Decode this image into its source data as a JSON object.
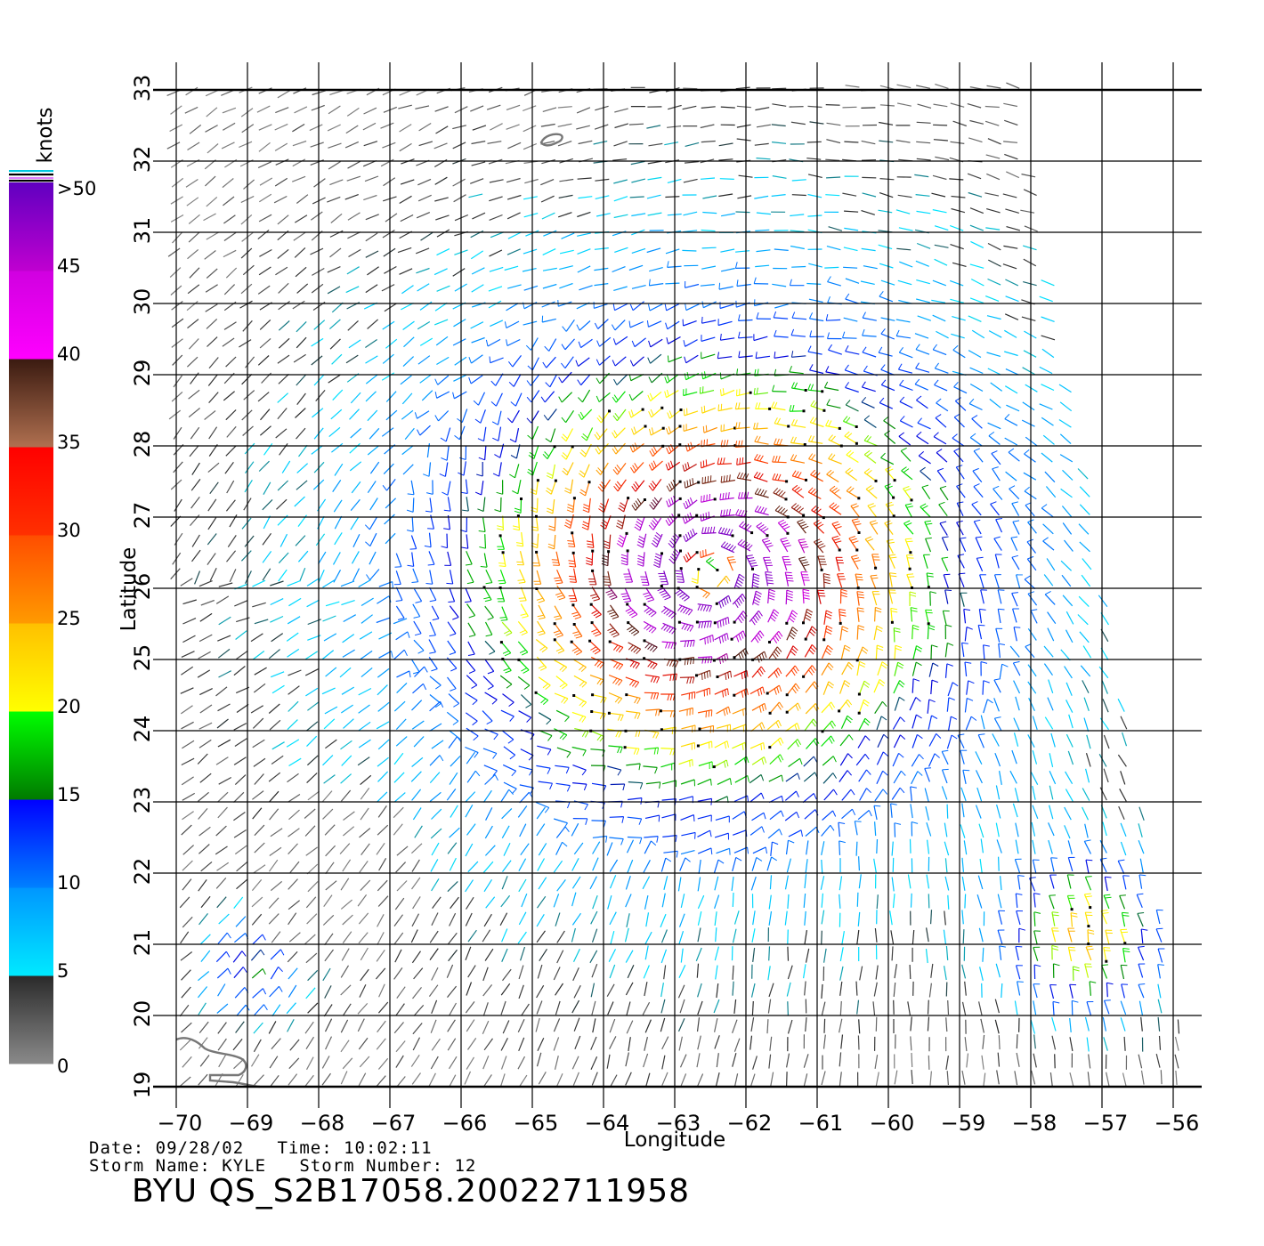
{
  "chart_data": {
    "type": "wind-barb-map",
    "xlabel": "Longitude",
    "ylabel": "Latitude",
    "xlim": [
      -70,
      -55.5
    ],
    "ylim": [
      19,
      33
    ],
    "x_ticks": [
      "−70",
      "−69",
      "−68",
      "−67",
      "−66",
      "−65",
      "−64",
      "−63",
      "−62",
      "−61",
      "−60",
      "−59",
      "−58",
      "−57",
      "−56"
    ],
    "y_ticks": [
      "19",
      "20",
      "21",
      "22",
      "23",
      "24",
      "25",
      "26",
      "27",
      "28",
      "29",
      "30",
      "31",
      "32",
      "33"
    ],
    "grid": true,
    "storm_center": {
      "lon": -62.5,
      "lat": 26.2
    },
    "colorbar": {
      "title": "knots",
      "labels": [
        "0",
        "5",
        "10",
        "15",
        "20",
        "25",
        "30",
        "35",
        "40",
        "45",
        ">50"
      ],
      "range": [
        0,
        55
      ],
      "colors": [
        {
          "from": 0,
          "to": 5,
          "bottom": "#8a8a8a",
          "top": "#2a2a2a"
        },
        {
          "from": 5,
          "to": 10,
          "bottom": "#00eaff",
          "top": "#0096ff"
        },
        {
          "from": 10,
          "to": 15,
          "bottom": "#0080ff",
          "top": "#0000ff"
        },
        {
          "from": 15,
          "to": 20,
          "bottom": "#007a00",
          "top": "#00ff00"
        },
        {
          "from": 20,
          "to": 25,
          "bottom": "#ffff00",
          "top": "#ffc000"
        },
        {
          "from": 25,
          "to": 30,
          "bottom": "#ff9a00",
          "top": "#ff4d00"
        },
        {
          "from": 30,
          "to": 35,
          "bottom": "#ff3000",
          "top": "#ff0000"
        },
        {
          "from": 35,
          "to": 40,
          "bottom": "#b07050",
          "top": "#3a1a10"
        },
        {
          "from": 40,
          "to": 45,
          "bottom": "#ff00ff",
          "top": "#d000e0"
        },
        {
          "from": 45,
          "to": 50,
          "bottom": "#c000d0",
          "top": "#6000c0"
        }
      ]
    }
  },
  "info": {
    "line1": "Date: 09/28/02   Time: 10:02:11",
    "line2": "Storm Name: KYLE   Storm Number: 12",
    "product": "BYU QS_S2B17058.20022711958"
  }
}
